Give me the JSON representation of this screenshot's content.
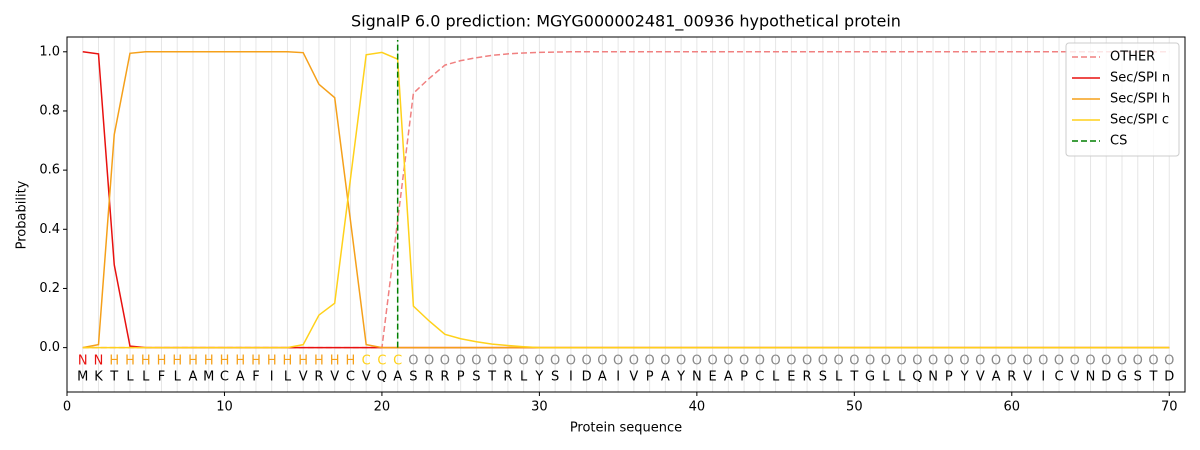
{
  "chart_data": {
    "type": "line",
    "title": "SignalP 6.0 prediction: MGYG000002481_00936 hypothetical protein",
    "x_label": "Protein sequence",
    "y_label": "Probability",
    "x": [
      1,
      2,
      3,
      4,
      5,
      6,
      7,
      8,
      9,
      10,
      11,
      12,
      13,
      14,
      15,
      16,
      17,
      18,
      19,
      20,
      21,
      22,
      23,
      24,
      25,
      26,
      27,
      28,
      29,
      30,
      31,
      32,
      33,
      34,
      35,
      36,
      37,
      38,
      39,
      40,
      41,
      42,
      43,
      44,
      45,
      46,
      47,
      48,
      49,
      50,
      51,
      52,
      53,
      54,
      55,
      56,
      57,
      58,
      59,
      60,
      61,
      62,
      63,
      64,
      65,
      66,
      67,
      68,
      69,
      70
    ],
    "xlim": [
      0,
      71
    ],
    "xticks": [
      0,
      10,
      20,
      30,
      40,
      50,
      60,
      70
    ],
    "ylim": [
      -0.15,
      1.05
    ],
    "yticks": [
      {
        "value": 0,
        "label": "0.0"
      },
      {
        "value": 0.2,
        "label": "0.2"
      },
      {
        "value": 0.4,
        "label": "0.4"
      },
      {
        "value": 0.6,
        "label": "0.6"
      },
      {
        "value": 0.8,
        "label": "0.8"
      },
      {
        "value": 1,
        "label": "1.0"
      }
    ],
    "series": [
      {
        "name": "OTHER",
        "color": "#f08080",
        "linestyle": "dashed",
        "values": [
          0,
          0,
          0,
          0,
          0,
          0,
          0,
          0,
          0,
          0,
          0,
          0,
          0,
          0,
          0,
          0,
          0,
          0,
          0,
          0,
          0.43,
          0.86,
          0.91,
          0.955,
          0.97,
          0.98,
          0.988,
          0.993,
          0.996,
          0.998,
          0.999,
          1,
          1,
          1,
          1,
          1,
          1,
          1,
          1,
          1,
          1,
          1,
          1,
          1,
          1,
          1,
          1,
          1,
          1,
          1,
          1,
          1,
          1,
          1,
          1,
          1,
          1,
          1,
          1,
          1,
          1,
          1,
          1,
          1,
          1,
          1,
          1,
          1,
          1,
          1
        ]
      },
      {
        "name": "Sec/SPI n",
        "color": "#e8110f",
        "linestyle": "solid",
        "values": [
          1,
          0.993,
          0.28,
          0.005,
          0,
          0,
          0,
          0,
          0,
          0,
          0,
          0,
          0,
          0,
          0,
          0,
          0,
          0,
          0,
          0,
          0,
          0,
          0,
          0,
          0,
          0,
          0,
          0,
          0,
          0,
          0,
          0,
          0,
          0,
          0,
          0,
          0,
          0,
          0,
          0,
          0,
          0,
          0,
          0,
          0,
          0,
          0,
          0,
          0,
          0,
          0,
          0,
          0,
          0,
          0,
          0,
          0,
          0,
          0,
          0,
          0,
          0,
          0,
          0,
          0,
          0,
          0,
          0,
          0,
          0
        ]
      },
      {
        "name": "Sec/SPI h",
        "color": "#f5a01a",
        "linestyle": "solid",
        "values": [
          0,
          0.01,
          0.72,
          0.995,
          1,
          1,
          1,
          1,
          1,
          1,
          1,
          1,
          1,
          1,
          0.997,
          0.89,
          0.845,
          0.43,
          0.01,
          0,
          0,
          0,
          0,
          0,
          0,
          0,
          0,
          0,
          0,
          0,
          0,
          0,
          0,
          0,
          0,
          0,
          0,
          0,
          0,
          0,
          0,
          0,
          0,
          0,
          0,
          0,
          0,
          0,
          0,
          0,
          0,
          0,
          0,
          0,
          0,
          0,
          0,
          0,
          0,
          0,
          0,
          0,
          0,
          0,
          0,
          0,
          0,
          0,
          0,
          0
        ]
      },
      {
        "name": "Sec/SPI c",
        "color": "#ffd11a",
        "linestyle": "solid",
        "values": [
          0,
          0,
          0,
          0,
          0,
          0,
          0,
          0,
          0,
          0,
          0,
          0,
          0,
          0,
          0.01,
          0.11,
          0.15,
          0.57,
          0.99,
          0.998,
          0.975,
          0.14,
          0.09,
          0.045,
          0.03,
          0.02,
          0.012,
          0.007,
          0.003,
          0,
          0,
          0,
          0,
          0,
          0,
          0,
          0,
          0,
          0,
          0,
          0,
          0,
          0,
          0,
          0,
          0,
          0,
          0,
          0,
          0,
          0,
          0,
          0,
          0,
          0,
          0,
          0,
          0,
          0,
          0,
          0,
          0,
          0,
          0,
          0,
          0,
          0,
          0,
          0,
          0
        ]
      }
    ],
    "cs": {
      "name": "CS",
      "x": 21,
      "color": "#007f00"
    },
    "labels": [
      "N",
      "N",
      "H",
      "H",
      "H",
      "H",
      "H",
      "H",
      "H",
      "H",
      "H",
      "H",
      "H",
      "H",
      "H",
      "H",
      "H",
      "H",
      "C",
      "C",
      "C",
      "O",
      "O",
      "O",
      "O",
      "O",
      "O",
      "O",
      "O",
      "O",
      "O",
      "O",
      "O",
      "O",
      "O",
      "O",
      "O",
      "O",
      "O",
      "O",
      "O",
      "O",
      "O",
      "O",
      "O",
      "O",
      "O",
      "O",
      "O",
      "O",
      "O",
      "O",
      "O",
      "O",
      "O",
      "O",
      "O",
      "O",
      "O",
      "O",
      "O",
      "O",
      "O",
      "O",
      "O",
      "O",
      "O",
      "O",
      "O",
      "O"
    ],
    "label_colors": {
      "N": "#e8110f",
      "H": "#f5a01a",
      "C": "#ffd11a",
      "O": "#888888"
    },
    "sequence": [
      "M",
      "K",
      "T",
      "L",
      "L",
      "F",
      "L",
      "A",
      "M",
      "C",
      "A",
      "F",
      "I",
      "L",
      "V",
      "R",
      "V",
      "C",
      "V",
      "Q",
      "A",
      "S",
      "R",
      "R",
      "P",
      "S",
      "T",
      "R",
      "L",
      "Y",
      "S",
      "I",
      "D",
      "A",
      "I",
      "V",
      "P",
      "A",
      "Y",
      "N",
      "E",
      "A",
      "P",
      "C",
      "L",
      "E",
      "R",
      "S",
      "L",
      "T",
      "G",
      "L",
      "L",
      "Q",
      "N",
      "P",
      "Y",
      "V",
      "A",
      "R",
      "V",
      "I",
      "C",
      "V",
      "N",
      "D",
      "G",
      "S",
      "T",
      "D"
    ],
    "legend": "upper right",
    "grid": true
  }
}
